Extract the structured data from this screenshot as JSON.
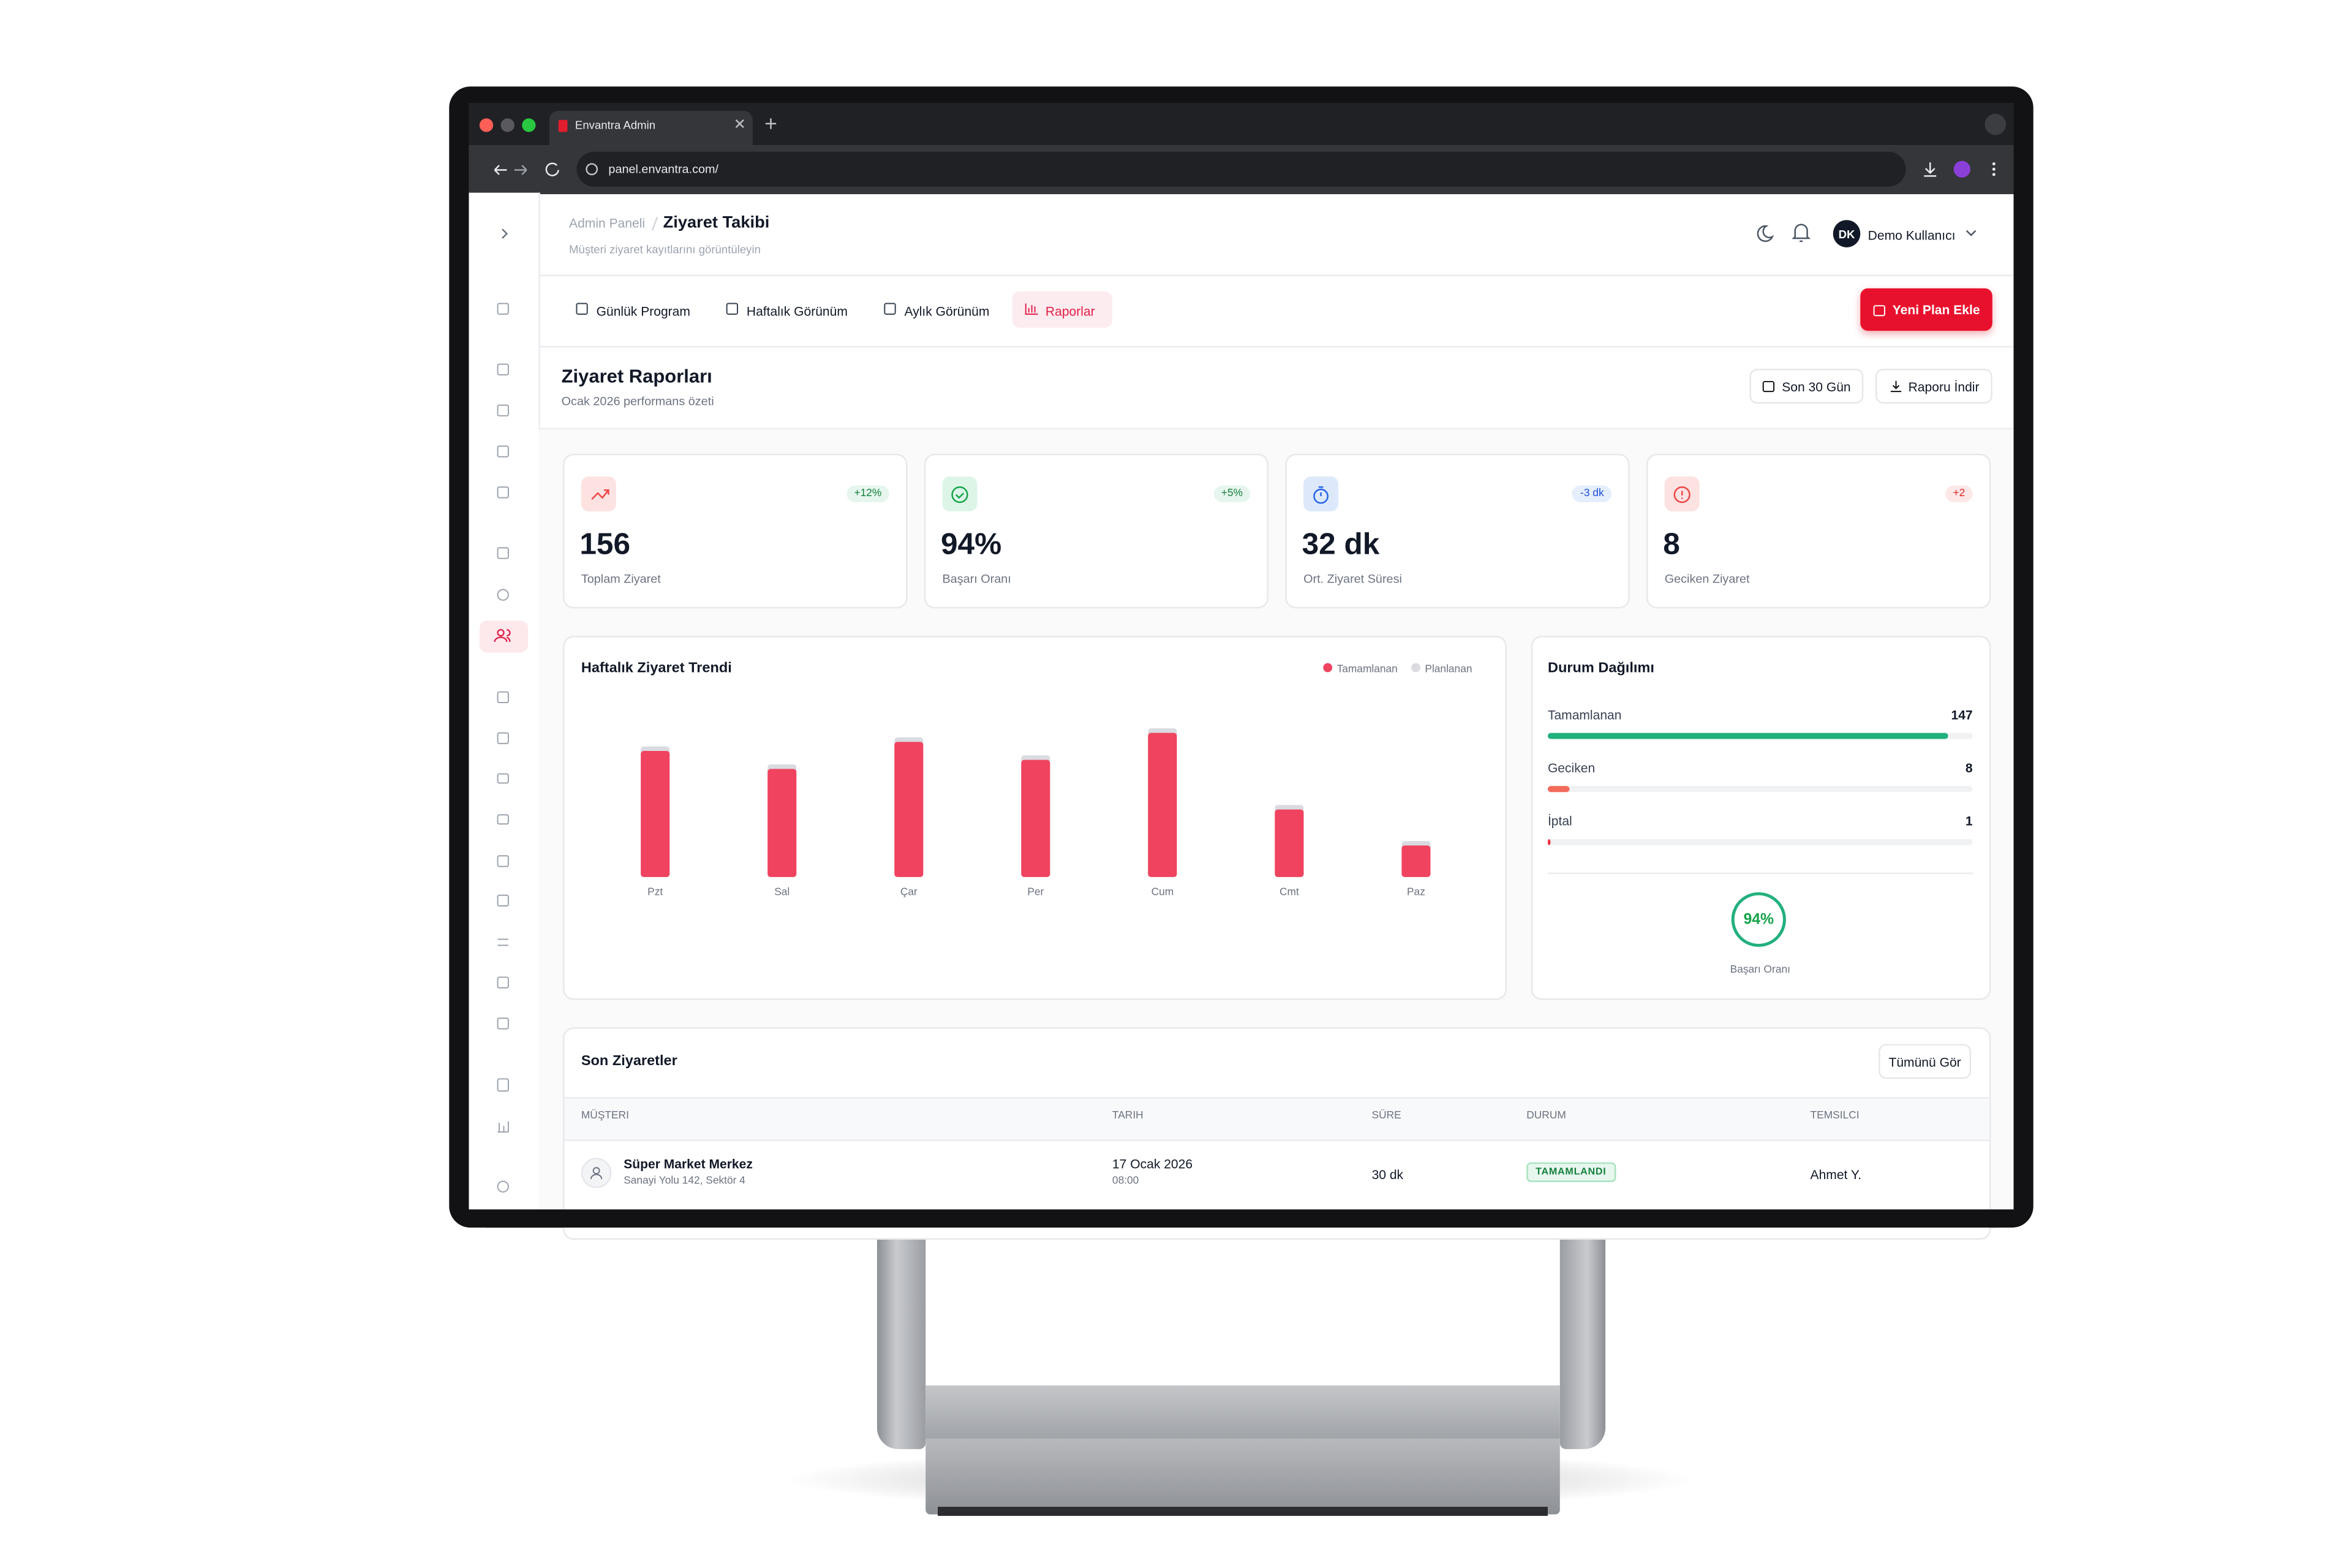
{
  "browser": {
    "tab_title": "Envantra Admin",
    "url": "panel.envantra.com/"
  },
  "header": {
    "breadcrumb_parent": "Admin Paneli",
    "breadcrumb_current": "Ziyaret Takibi",
    "subtitle": "Müşteri ziyaret kayıtlarını görüntüleyin",
    "avatar_initials": "DK",
    "user_name": "Demo Kullanıcı"
  },
  "tabs": [
    "Günlük Program",
    "Haftalık Görünüm",
    "Aylık Görünüm",
    "Raporlar"
  ],
  "primary_button": "Yeni Plan Ekle",
  "report": {
    "title": "Ziyaret Raporları",
    "subtitle": "Ocak 2026 performans özeti",
    "range_button": "Son 30 Gün",
    "download_button": "Raporu İndir"
  },
  "kpis": [
    {
      "value": "156",
      "label": "Toplam Ziyaret",
      "change": "+12%"
    },
    {
      "value": "94%",
      "label": "Başarı Oranı",
      "change": "+5%"
    },
    {
      "value": "32 dk",
      "label": "Ort. Ziyaret Süresi",
      "change": "-3 dk"
    },
    {
      "value": "8",
      "label": "Geciken Ziyaret",
      "change": "+2"
    }
  ],
  "chart_data": {
    "type": "bar",
    "title": "Haftalık Ziyaret Trendi",
    "categories": [
      "Pzt",
      "Sal",
      "Çar",
      "Per",
      "Cum",
      "Cmt",
      "Paz"
    ],
    "series": [
      {
        "name": "Tamamlanan",
        "color": "#f0435f",
        "values": [
          28,
          24,
          30,
          26,
          32,
          15,
          7
        ]
      },
      {
        "name": "Planlanan",
        "color": "#d9dbe0",
        "values": [
          29,
          25,
          31,
          27,
          33,
          16,
          8
        ]
      }
    ]
  },
  "status": {
    "title": "Durum Dağılımı",
    "items": [
      {
        "name": "Tamamlanan",
        "value": 147,
        "color": "#22b07d"
      },
      {
        "name": "Geciken",
        "value": 8,
        "color": "#f26b5b"
      },
      {
        "name": "İptal",
        "value": 1,
        "color": "#ef2b3b"
      }
    ],
    "rate": "94%",
    "rate_label": "Başarı Oranı"
  },
  "recent": {
    "title": "Son Ziyaretler",
    "view_all": "Tümünü Gör",
    "columns": [
      "MÜŞTERI",
      "TARIH",
      "SÜRE",
      "DURUM",
      "TEMSILCI"
    ],
    "rows": [
      {
        "customer": "Süper Market Merkez",
        "address": "Sanayi Yolu 142, Sektör 4",
        "date": "17 Ocak 2026",
        "time": "08:00",
        "duration": "30 dk",
        "status": "TAMAMLANDI",
        "rep": "Ahmet Y."
      }
    ]
  }
}
